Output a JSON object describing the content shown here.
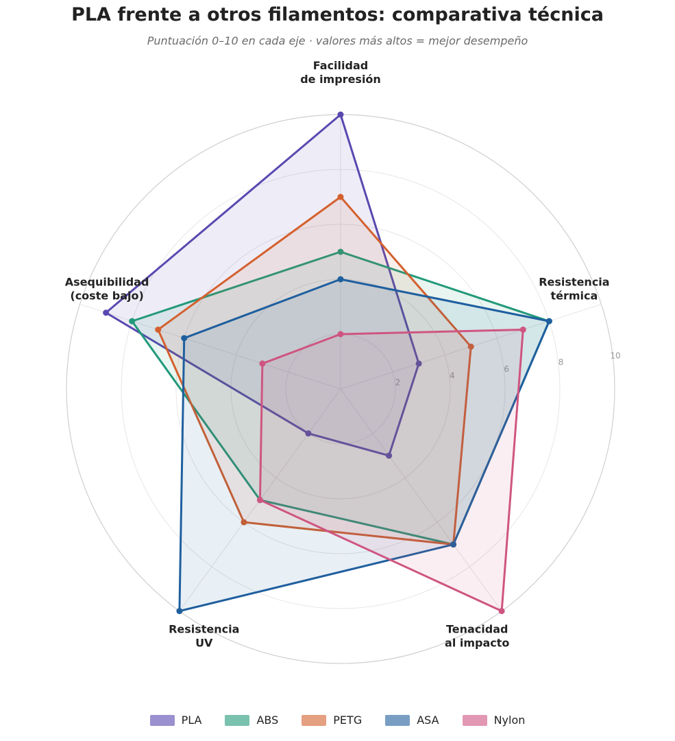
{
  "chart_data": {
    "type": "radar",
    "title": "PLA frente a otros filamentos: comparativa técnica",
    "subtitle": "Puntuación 0–10 en cada eje · valores más altos = mejor desempeño",
    "axes": [
      [
        "Facilidad",
        "de impresión"
      ],
      [
        "Resistencia",
        "térmica"
      ],
      [
        "Tenacidad",
        "al impacto"
      ],
      [
        "Resistencia",
        "UV"
      ],
      [
        "Asequibilidad",
        "(coste bajo)"
      ]
    ],
    "rlim": [
      0,
      10
    ],
    "rticks": [
      "2",
      "4",
      "6",
      "8",
      "10"
    ],
    "grid": true,
    "legend_position": "bottom",
    "series": [
      {
        "name": "PLA",
        "color": "#5a48b0",
        "values": [
          10,
          3,
          3,
          2,
          9
        ]
      },
      {
        "name": "ABS",
        "color": "#22997a",
        "values": [
          5,
          8,
          7,
          5,
          8
        ]
      },
      {
        "name": "PETG",
        "color": "#d4602e",
        "values": [
          7,
          5,
          7,
          6,
          7
        ]
      },
      {
        "name": "ASA",
        "color": "#1f5f9e",
        "values": [
          4,
          8,
          7,
          10,
          6
        ]
      },
      {
        "name": "Nylon",
        "color": "#cf5580",
        "values": [
          2,
          7,
          10,
          5,
          3
        ]
      }
    ]
  }
}
